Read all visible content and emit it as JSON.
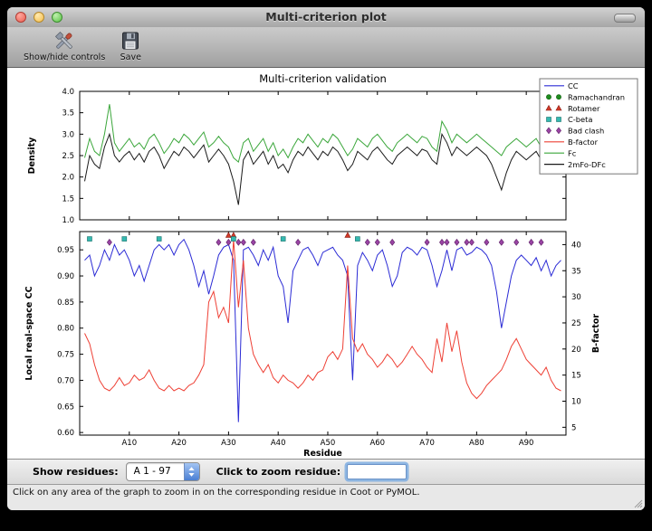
{
  "window": {
    "title": "Multi-criterion plot"
  },
  "toolbar": {
    "items": [
      {
        "label": "Show/hide controls",
        "icon": "show-hide-controls-icon"
      },
      {
        "label": "Save",
        "icon": "save-icon"
      }
    ]
  },
  "controls": {
    "show_residues_label": "Show residues:",
    "residue_range_value": "A  1 - 97",
    "zoom_label": "Click to zoom residue:",
    "zoom_value": "",
    "stepper_color": "#4a7fd4",
    "focus_ring_color": "#78aae1"
  },
  "status": {
    "message": "Click on any area of the graph to zoom in on the corresponding residue in Coot or PyMOL."
  },
  "legend": {
    "entries": [
      {
        "label": "CC",
        "type": "line",
        "color": "#2b2bd5"
      },
      {
        "label": "Ramachandran",
        "type": "circle",
        "color": "#1e8c1e",
        "edge": "#0c5c0c"
      },
      {
        "label": "Rotamer",
        "type": "triangle",
        "color": "#d23b2a",
        "edge": "#8a1a10"
      },
      {
        "label": "C-beta",
        "type": "square",
        "color": "#35b8b0",
        "edge": "#17716b"
      },
      {
        "label": "Bad clash",
        "type": "diamond",
        "color": "#9a44a4",
        "edge": "#5e2166"
      },
      {
        "label": "B-factor",
        "type": "line",
        "color": "#ee4035"
      },
      {
        "label": "Fc",
        "type": "line",
        "color": "#3aa63a"
      },
      {
        "label": "2mFo-DFc",
        "type": "line",
        "color": "#1a1a1a"
      }
    ]
  },
  "chart_data": [
    {
      "type": "line",
      "title": "Multi-criterion validation",
      "ylabel": "Density",
      "ylim": [
        1.0,
        4.0
      ],
      "yticks": [
        1.0,
        1.5,
        2.0,
        2.5,
        3.0,
        3.5,
        4.0
      ],
      "ytick_labels": [
        "1.0",
        "1.5",
        "2.0",
        "2.5",
        "3.0",
        "3.5",
        "4.0"
      ],
      "xlim": [
        0,
        98
      ],
      "x_first_residue": 1,
      "series": [
        {
          "name": "Fc",
          "color": "#3aa63a",
          "values": [
            2.45,
            2.9,
            2.6,
            2.5,
            3.0,
            3.7,
            2.8,
            2.6,
            2.75,
            2.9,
            2.7,
            2.8,
            2.65,
            2.9,
            3.0,
            2.8,
            2.55,
            2.7,
            2.9,
            2.8,
            3.0,
            2.9,
            2.75,
            2.9,
            3.05,
            2.7,
            2.8,
            2.95,
            2.8,
            2.7,
            2.45,
            2.35,
            2.8,
            2.9,
            2.6,
            2.75,
            2.9,
            2.6,
            2.8,
            2.5,
            2.65,
            2.45,
            2.7,
            2.9,
            2.8,
            3.0,
            2.85,
            2.7,
            2.9,
            2.8,
            3.0,
            2.9,
            2.7,
            2.5,
            2.65,
            2.9,
            2.8,
            2.7,
            2.9,
            3.0,
            2.85,
            2.7,
            2.6,
            2.8,
            2.9,
            3.0,
            2.9,
            2.8,
            2.95,
            2.9,
            2.7,
            2.6,
            3.3,
            3.1,
            2.8,
            3.0,
            2.9,
            2.8,
            2.9,
            3.0,
            2.9,
            2.8,
            2.7,
            2.6,
            2.5,
            2.7,
            2.8,
            2.9,
            2.8,
            2.7,
            2.8,
            2.9,
            2.7,
            3.0,
            3.35,
            2.9,
            2.95
          ]
        },
        {
          "name": "2mFo-DFc",
          "color": "#1a1a1a",
          "values": [
            1.9,
            2.5,
            2.3,
            2.2,
            2.7,
            3.0,
            2.5,
            2.35,
            2.5,
            2.6,
            2.4,
            2.55,
            2.35,
            2.6,
            2.7,
            2.5,
            2.2,
            2.4,
            2.6,
            2.5,
            2.7,
            2.6,
            2.45,
            2.6,
            2.75,
            2.35,
            2.5,
            2.65,
            2.5,
            2.3,
            1.9,
            1.35,
            2.4,
            2.6,
            2.3,
            2.45,
            2.6,
            2.3,
            2.5,
            2.2,
            2.3,
            2.1,
            2.4,
            2.6,
            2.5,
            2.7,
            2.55,
            2.4,
            2.6,
            2.5,
            2.7,
            2.6,
            2.4,
            2.15,
            2.3,
            2.6,
            2.5,
            2.4,
            2.6,
            2.7,
            2.55,
            2.4,
            2.3,
            2.5,
            2.6,
            2.7,
            2.6,
            2.5,
            2.65,
            2.6,
            2.4,
            2.3,
            3.0,
            2.8,
            2.5,
            2.7,
            2.6,
            2.5,
            2.6,
            2.7,
            2.6,
            2.5,
            2.3,
            2.0,
            1.7,
            2.1,
            2.4,
            2.6,
            2.5,
            2.4,
            2.5,
            2.6,
            2.4,
            2.7,
            3.0,
            2.6,
            2.9
          ]
        }
      ]
    },
    {
      "type": "line",
      "xlabel": "Residue",
      "ylabel_left": "Local real-space CC",
      "ylabel_right": "B-factor",
      "ylim_left": [
        0.595,
        0.985
      ],
      "yticks_left": [
        0.6,
        0.65,
        0.7,
        0.75,
        0.8,
        0.85,
        0.9,
        0.95
      ],
      "ytick_labels_left": [
        "0.60",
        "0.65",
        "0.70",
        "0.75",
        "0.80",
        "0.85",
        "0.90",
        "0.95"
      ],
      "ylim_right": [
        3.5,
        42.5
      ],
      "yticks_right": [
        5,
        10,
        15,
        20,
        25,
        30,
        35,
        40
      ],
      "ytick_labels_right": [
        "5",
        "10",
        "15",
        "20",
        "25",
        "30",
        "35",
        "40"
      ],
      "xlim": [
        0,
        98
      ],
      "x_first_residue": 1,
      "xticks": [
        {
          "pos": 10,
          "label": "A10"
        },
        {
          "pos": 20,
          "label": "A20"
        },
        {
          "pos": 30,
          "label": "A30"
        },
        {
          "pos": 40,
          "label": "A40"
        },
        {
          "pos": 50,
          "label": "A50"
        },
        {
          "pos": 60,
          "label": "A60"
        },
        {
          "pos": 70,
          "label": "A70"
        },
        {
          "pos": 80,
          "label": "A80"
        },
        {
          "pos": 90,
          "label": "A90"
        }
      ],
      "series": [
        {
          "name": "CC",
          "axis": "left",
          "color": "#2b2bd5",
          "values": [
            0.93,
            0.94,
            0.9,
            0.92,
            0.95,
            0.93,
            0.96,
            0.94,
            0.95,
            0.93,
            0.9,
            0.92,
            0.89,
            0.92,
            0.95,
            0.96,
            0.95,
            0.96,
            0.94,
            0.96,
            0.97,
            0.95,
            0.92,
            0.88,
            0.91,
            0.865,
            0.9,
            0.94,
            0.955,
            0.96,
            0.93,
            0.62,
            0.95,
            0.955,
            0.94,
            0.92,
            0.95,
            0.93,
            0.955,
            0.9,
            0.88,
            0.81,
            0.91,
            0.93,
            0.95,
            0.955,
            0.94,
            0.92,
            0.945,
            0.95,
            0.955,
            0.94,
            0.93,
            0.9,
            0.7,
            0.92,
            0.945,
            0.93,
            0.91,
            0.94,
            0.95,
            0.92,
            0.88,
            0.9,
            0.945,
            0.955,
            0.95,
            0.94,
            0.955,
            0.95,
            0.92,
            0.88,
            0.91,
            0.95,
            0.91,
            0.95,
            0.955,
            0.94,
            0.945,
            0.955,
            0.95,
            0.94,
            0.92,
            0.87,
            0.8,
            0.85,
            0.9,
            0.93,
            0.94,
            0.93,
            0.92,
            0.935,
            0.91,
            0.93,
            0.9,
            0.92,
            0.93
          ]
        },
        {
          "name": "B-factor",
          "axis": "right",
          "color": "#ee4035",
          "values": [
            23,
            21,
            17,
            14,
            12.5,
            12,
            13,
            14.5,
            13,
            13.5,
            15,
            14,
            14.5,
            16,
            14,
            12.5,
            12,
            13,
            12,
            12.5,
            12,
            13,
            13.5,
            15,
            17,
            29,
            31,
            26,
            28,
            25,
            41,
            28,
            37,
            24,
            19,
            17,
            15.5,
            17,
            14.5,
            13.5,
            15,
            14,
            13.5,
            12.5,
            13.5,
            15,
            14,
            15.5,
            16,
            18.5,
            19.5,
            18,
            20,
            36,
            22,
            19.5,
            21,
            19,
            18,
            16.5,
            17.5,
            19,
            18,
            16.5,
            17.5,
            19,
            20.5,
            19,
            18,
            16.5,
            15.5,
            22,
            17.5,
            25,
            19.5,
            23.5,
            17.5,
            13.5,
            11.5,
            10.5,
            11.5,
            13,
            14,
            15,
            16,
            18,
            20.5,
            22,
            20,
            18,
            17,
            16,
            15,
            16.5,
            14,
            12.5,
            12
          ]
        }
      ],
      "markers": [
        {
          "name": "Rotamer",
          "shape": "triangle",
          "color": "#d23b2a",
          "edge": "#8a1a10",
          "y": 0.978,
          "residues": [
            30,
            31,
            54
          ]
        },
        {
          "name": "C-beta",
          "shape": "square",
          "color": "#35b8b0",
          "edge": "#17716b",
          "y": 0.971,
          "residues": [
            2,
            9,
            16,
            31,
            41,
            56
          ]
        },
        {
          "name": "Bad clash",
          "shape": "diamond",
          "color": "#9a44a4",
          "edge": "#5e2166",
          "y": 0.9645,
          "residues": [
            6,
            28,
            30,
            32,
            33,
            35,
            44,
            58,
            60,
            63,
            70,
            73,
            74,
            76,
            78,
            79,
            82,
            85,
            88,
            91,
            93
          ]
        }
      ]
    }
  ]
}
